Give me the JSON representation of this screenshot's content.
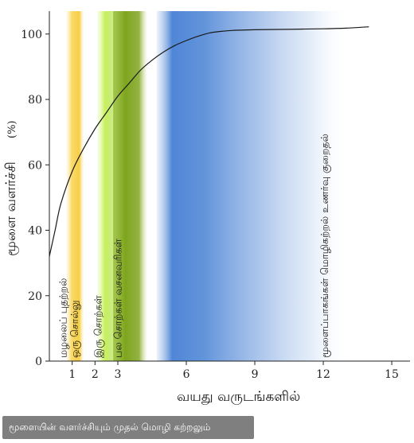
{
  "caption": "மூளையின் வளர்ச்சியும் முதல் மொழி கற்றலும்",
  "chart_data": {
    "type": "line",
    "xlabel": "வயது வருடங்களில்",
    "ylabel": "மூளை வளர்ச்சி",
    "ylabel_unit": "(%)",
    "xlim": [
      0,
      15.8
    ],
    "ylim": [
      0,
      107
    ],
    "x_ticks": [
      1,
      2,
      3,
      6,
      9,
      12,
      15
    ],
    "y_ticks": [
      0,
      20,
      40,
      60,
      80,
      100
    ],
    "series": [
      {
        "x": [
          0,
          0.25,
          0.5,
          1,
          1.5,
          2,
          2.5,
          3,
          3.5,
          4,
          4.5,
          5,
          5.5,
          6,
          6.5,
          7,
          7.5,
          8,
          9,
          10,
          11,
          12,
          13,
          14
        ],
        "y": [
          32,
          40,
          48,
          58,
          65,
          71,
          76,
          81,
          85,
          89,
          92,
          94.5,
          96.5,
          98,
          99.3,
          100.3,
          100.8,
          101.1,
          101.3,
          101.4,
          101.5,
          101.6,
          101.8,
          102.2
        ],
        "color": "#1a1a1a"
      }
    ],
    "bands": [
      {
        "from": 0.75,
        "to": 1.5,
        "color": "#f7cf45",
        "label": "மழலைப் புதற்றல்"
      },
      {
        "from": 1.1,
        "to": 1.5,
        "color": "#f7cf45",
        "label": "ஒரு சொல்லு"
      },
      {
        "from": 2.1,
        "to": 2.85,
        "color": "#b9ec3a",
        "label": "இரு சொற்கள்"
      },
      {
        "from": 2.8,
        "to": 4.3,
        "color": "#7ea51e",
        "label": "பல சொற்கள் வசனவரிகள்"
      },
      {
        "from": 4.7,
        "to": 13.2,
        "color": "#4f86d6",
        "label": "மூளைப்பாகங்கள் மொழிகற்றல் உணர்வு குறைதல்"
      }
    ]
  }
}
